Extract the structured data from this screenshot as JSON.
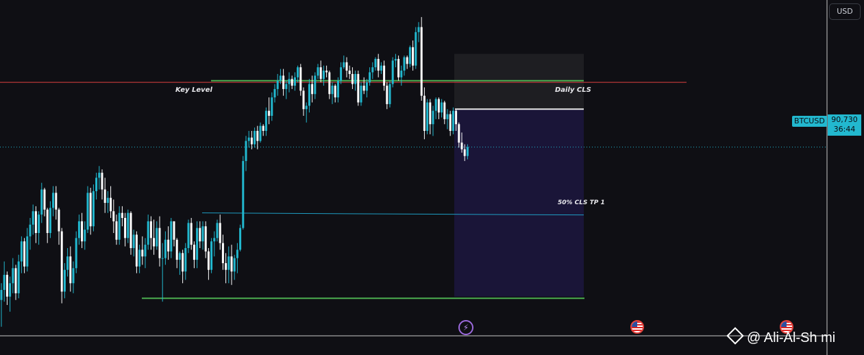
{
  "currency_button": "USD",
  "symbol": "BTCUSD",
  "last_price": "90,730",
  "countdown": "36:44",
  "labels": {
    "key_level": "Key Level",
    "daily_cls": "Daily CLS",
    "tp1": "50% CLS TP 1"
  },
  "watermark": "@ Ali-Al-Sh  mi",
  "colors": {
    "up": "#22b8cf",
    "down": "#ffffff",
    "key_level": "#e04040",
    "daily_cls": "#4caf50",
    "tp_line": "#1e9ec4",
    "support": "#4caf50",
    "target_zone": "#1a1538",
    "stop_zone": "#1e1e22",
    "entry_line": "#e8e8e8"
  },
  "chart_data": {
    "type": "candlestick",
    "candles_ohlc": [
      [
        81600,
        82600,
        80000,
        82200
      ],
      [
        82200,
        83900,
        81500,
        83100
      ],
      [
        83100,
        83300,
        81300,
        81800
      ],
      [
        81800,
        83000,
        80900,
        82600
      ],
      [
        82600,
        84100,
        82000,
        83500
      ],
      [
        83500,
        83700,
        81600,
        82000
      ],
      [
        82000,
        84300,
        81700,
        83900
      ],
      [
        83900,
        85400,
        83200,
        85100
      ],
      [
        85100,
        85300,
        83200,
        83600
      ],
      [
        83600,
        85900,
        83300,
        85400
      ],
      [
        85400,
        86500,
        84600,
        86100
      ],
      [
        86100,
        87300,
        85500,
        86900
      ],
      [
        86900,
        87200,
        85000,
        85600
      ],
      [
        85600,
        86900,
        84900,
        86700
      ],
      [
        86700,
        88600,
        86200,
        88200
      ],
      [
        88200,
        88300,
        86600,
        87000
      ],
      [
        87000,
        87100,
        85000,
        85600
      ],
      [
        85600,
        87500,
        85300,
        87100
      ],
      [
        87100,
        88400,
        86600,
        88000
      ],
      [
        88000,
        88400,
        86400,
        87000
      ],
      [
        87000,
        87100,
        84900,
        85700
      ],
      [
        85700,
        85900,
        81400,
        82100
      ],
      [
        82100,
        83800,
        81700,
        83400
      ],
      [
        83400,
        84700,
        83000,
        84200
      ],
      [
        84200,
        84800,
        82100,
        82600
      ],
      [
        82600,
        83900,
        82000,
        83500
      ],
      [
        83500,
        85700,
        83200,
        85300
      ],
      [
        85300,
        86700,
        84900,
        86300
      ],
      [
        86300,
        86800,
        84700,
        85100
      ],
      [
        85100,
        86300,
        84600,
        85800
      ],
      [
        85800,
        88400,
        85600,
        88000
      ],
      [
        88000,
        88300,
        85500,
        86000
      ],
      [
        86000,
        88500,
        85700,
        88100
      ],
      [
        88100,
        89200,
        87600,
        88900
      ],
      [
        88900,
        89600,
        88200,
        89200
      ],
      [
        89200,
        89400,
        87600,
        88200
      ],
      [
        88200,
        88900,
        86800,
        87400
      ],
      [
        87400,
        88100,
        86800,
        87700
      ],
      [
        87700,
        88400,
        86500,
        86900
      ],
      [
        86900,
        87600,
        85600,
        86300
      ],
      [
        86300,
        86700,
        84900,
        85200
      ],
      [
        85200,
        87200,
        84900,
        86800
      ],
      [
        86800,
        87200,
        86000,
        86500
      ],
      [
        86500,
        86800,
        84800,
        85300
      ],
      [
        85300,
        87000,
        85000,
        86800
      ],
      [
        86800,
        86900,
        84300,
        84700
      ],
      [
        84700,
        85800,
        84200,
        85500
      ],
      [
        85500,
        85700,
        83200,
        83600
      ],
      [
        83600,
        84900,
        83200,
        84600
      ],
      [
        84600,
        85400,
        83700,
        84200
      ],
      [
        84200,
        85300,
        83500,
        84900
      ],
      [
        84900,
        86700,
        84600,
        86300
      ],
      [
        86300,
        86600,
        84600,
        85300
      ],
      [
        85300,
        86400,
        84300,
        84800
      ],
      [
        84800,
        86300,
        84600,
        85900
      ],
      [
        85900,
        86600,
        83600,
        84100
      ],
      [
        84100,
        85000,
        81500,
        84100
      ],
      [
        84100,
        85700,
        83700,
        85200
      ],
      [
        85200,
        86000,
        84000,
        84500
      ],
      [
        84500,
        86500,
        84100,
        86300
      ],
      [
        86300,
        86300,
        84800,
        85200
      ],
      [
        85200,
        85300,
        83500,
        84000
      ],
      [
        84000,
        84500,
        83100,
        84400
      ],
      [
        84400,
        84600,
        82600,
        83300
      ],
      [
        83300,
        85000,
        82800,
        84700
      ],
      [
        84700,
        86400,
        84400,
        86200
      ],
      [
        86200,
        86500,
        84600,
        84900
      ],
      [
        84900,
        85100,
        83500,
        84000
      ],
      [
        84000,
        86300,
        83500,
        85900
      ],
      [
        85900,
        86300,
        84700,
        85100
      ],
      [
        85100,
        86300,
        84600,
        86000
      ],
      [
        86000,
        86300,
        84100,
        84500
      ],
      [
        84500,
        84700,
        82800,
        83400
      ],
      [
        83400,
        85300,
        83200,
        85100
      ],
      [
        85100,
        85700,
        84200,
        85300
      ],
      [
        85300,
        86400,
        85100,
        86200
      ],
      [
        86200,
        86700,
        84600,
        85000
      ],
      [
        85000,
        85500,
        83400,
        83800
      ],
      [
        83800,
        84400,
        82600,
        83400
      ],
      [
        83400,
        84800,
        82600,
        84200
      ],
      [
        84200,
        84900,
        82500,
        83300
      ],
      [
        83300,
        84300,
        82800,
        84100
      ],
      [
        84100,
        85000,
        83200,
        84600
      ],
      [
        84600,
        86100,
        84500,
        85900
      ],
      [
        85900,
        90200,
        85800,
        89900
      ],
      [
        89900,
        91400,
        89300,
        91100
      ],
      [
        91100,
        91700,
        90700,
        91300
      ],
      [
        91300,
        91700,
        90600,
        90900
      ],
      [
        90900,
        91900,
        90700,
        91700
      ],
      [
        91700,
        92000,
        90600,
        91100
      ],
      [
        91100,
        92200,
        91000,
        92000
      ],
      [
        92000,
        92100,
        91400,
        91700
      ],
      [
        91700,
        93100,
        91400,
        92900
      ],
      [
        92900,
        93700,
        92100,
        92600
      ],
      [
        92600,
        94000,
        92300,
        93700
      ],
      [
        93700,
        94500,
        93400,
        94200
      ],
      [
        94200,
        95100,
        93800,
        94700
      ],
      [
        94700,
        95400,
        94500,
        95000
      ],
      [
        95000,
        95400,
        93800,
        94200
      ],
      [
        94200,
        94700,
        93600,
        94500
      ],
      [
        94500,
        95200,
        94000,
        94800
      ],
      [
        94800,
        95000,
        94200,
        94400
      ],
      [
        94400,
        95200,
        94100,
        94900
      ],
      [
        94900,
        95600,
        94600,
        95500
      ],
      [
        95500,
        95700,
        93800,
        94100
      ],
      [
        94100,
        94300,
        92600,
        93000
      ],
      [
        93000,
        93400,
        92200,
        93200
      ],
      [
        93200,
        94800,
        92800,
        94500
      ],
      [
        94500,
        95000,
        93400,
        93900
      ],
      [
        93900,
        95200,
        93600,
        95000
      ],
      [
        95000,
        95700,
        94800,
        95500
      ],
      [
        95500,
        95900,
        94600,
        94800
      ],
      [
        94800,
        95600,
        94400,
        95300
      ],
      [
        95300,
        95600,
        94900,
        95200
      ],
      [
        95200,
        95300,
        93600,
        93900
      ],
      [
        93900,
        94600,
        93300,
        94400
      ],
      [
        94400,
        94500,
        93400,
        93700
      ],
      [
        93700,
        94900,
        93400,
        94700
      ],
      [
        94700,
        95800,
        94500,
        95500
      ],
      [
        95500,
        96200,
        95400,
        95800
      ],
      [
        95800,
        96100,
        94900,
        95300
      ],
      [
        95300,
        95600,
        94800,
        95100
      ],
      [
        95100,
        95500,
        94200,
        94500
      ],
      [
        94500,
        95300,
        94100,
        95100
      ],
      [
        95100,
        95300,
        93200,
        93400
      ],
      [
        93400,
        94600,
        93200,
        94400
      ],
      [
        94400,
        94900,
        93900,
        94100
      ],
      [
        94100,
        94800,
        93700,
        94600
      ],
      [
        94600,
        95500,
        94400,
        95200
      ],
      [
        95200,
        95800,
        94800,
        95500
      ],
      [
        95500,
        96100,
        95300,
        96000
      ],
      [
        96000,
        96300,
        94900,
        95300
      ],
      [
        95300,
        95800,
        95100,
        95600
      ],
      [
        95600,
        95900,
        94100,
        94400
      ],
      [
        94400,
        94600,
        93000,
        93300
      ],
      [
        93300,
        94700,
        93100,
        94500
      ],
      [
        94500,
        96100,
        94300,
        95900
      ],
      [
        95900,
        96300,
        95500,
        96000
      ],
      [
        96000,
        96200,
        94700,
        94900
      ],
      [
        94900,
        95600,
        94400,
        95300
      ],
      [
        95300,
        96200,
        95000,
        96100
      ],
      [
        96100,
        96200,
        95400,
        95700
      ],
      [
        95700,
        96800,
        95500,
        96700
      ],
      [
        96700,
        97100,
        95300,
        95600
      ],
      [
        95600,
        97900,
        95400,
        97600
      ],
      [
        97600,
        98200,
        97000,
        97900
      ],
      [
        97900,
        98500,
        93500,
        93800
      ],
      [
        93800,
        94300,
        91200,
        91700
      ],
      [
        91700,
        93600,
        91500,
        93400
      ],
      [
        93400,
        93600,
        91500,
        92100
      ],
      [
        92100,
        93200,
        91400,
        92900
      ],
      [
        92900,
        93700,
        92400,
        93600
      ],
      [
        93600,
        93700,
        92400,
        92800
      ],
      [
        92800,
        93600,
        92500,
        93400
      ],
      [
        93400,
        93500,
        92100,
        92400
      ],
      [
        92400,
        93000,
        91800,
        92700
      ],
      [
        92700,
        92900,
        91400,
        91700
      ],
      [
        91700,
        93100,
        91500,
        92900
      ],
      [
        92900,
        93000,
        91700,
        92100
      ],
      [
        92100,
        92200,
        90700,
        91000
      ],
      [
        91000,
        91600,
        90400,
        90600
      ],
      [
        90600,
        90900,
        89900,
        90200
      ],
      [
        90200,
        90900,
        90000,
        90730
      ]
    ],
    "ylim": [
      79500,
      98700
    ],
    "levels": {
      "key_level": 94600,
      "daily_cls": 94700,
      "tp1": 86800,
      "support": 81700,
      "current_price": 90730,
      "entry": 93000,
      "target_zone_bottom": 81800,
      "stop_zone_top": 96300
    }
  }
}
